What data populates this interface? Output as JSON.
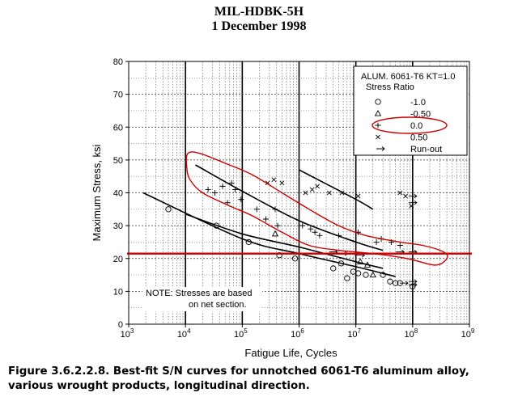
{
  "header": {
    "line1": "MIL-HDBK-5H",
    "line2": "1 December 1998"
  },
  "caption": {
    "line1": "Figure 3.6.2.2.8.  Best-fit S/N curves for unnotched 6061-T6 aluminum alloy,",
    "line2": "various wrought products, longitudinal direction."
  },
  "chart_data": {
    "type": "scatter",
    "xlabel": "Fatigue Life, Cycles",
    "ylabel": "Maximum Stress, ksi",
    "xscale": "log",
    "xlim": [
      1000,
      1000000000
    ],
    "ylim": [
      0,
      80
    ],
    "x_ticks": [
      {
        "base": "10",
        "exp": "3"
      },
      {
        "base": "10",
        "exp": "4"
      },
      {
        "base": "10",
        "exp": "5"
      },
      {
        "base": "10",
        "exp": "6"
      },
      {
        "base": "10",
        "exp": "7"
      },
      {
        "base": "10",
        "exp": "8"
      },
      {
        "base": "10",
        "exp": "9"
      }
    ],
    "y_ticks": [
      "0",
      "10",
      "20",
      "30",
      "40",
      "50",
      "60",
      "70",
      "80"
    ],
    "grid": true,
    "legend": {
      "title": "ALUM. 6061-T6 KT=1.0",
      "subtitle": "Stress Ratio",
      "placement": "top-right",
      "entries": [
        {
          "marker": "circle",
          "label": "-1.0"
        },
        {
          "marker": "triangle",
          "label": "-0.50"
        },
        {
          "marker": "plus",
          "label": "0.0"
        },
        {
          "marker": "x",
          "label": "0.50"
        },
        {
          "marker": "arrow",
          "label": "Run-out"
        }
      ]
    },
    "note": {
      "line1": "NOTE: Stresses are based",
      "line2": "on net section."
    },
    "series": [
      {
        "marker": "circle",
        "points": [
          [
            5000,
            35
          ],
          [
            35000,
            30
          ],
          [
            130000,
            25
          ],
          [
            450000,
            21
          ],
          [
            850000,
            20
          ],
          [
            4000000,
            17
          ],
          [
            5500000,
            18.5
          ],
          [
            7000000,
            14
          ],
          [
            9000000,
            16
          ],
          [
            11000000,
            15.5
          ],
          [
            15000000,
            15
          ],
          [
            30000000,
            15
          ],
          [
            40000000,
            13
          ],
          [
            50000000,
            12.5
          ],
          [
            60000000,
            12.5
          ],
          [
            100000000,
            11.5
          ]
        ]
      },
      {
        "marker": "triangle",
        "points": [
          [
            380000,
            27.5
          ],
          [
            12000000,
            19
          ],
          [
            16000000,
            18
          ],
          [
            20000000,
            15
          ]
        ]
      },
      {
        "marker": "plus",
        "points": [
          [
            25000,
            41
          ],
          [
            33000,
            40
          ],
          [
            45000,
            42
          ],
          [
            55000,
            37
          ],
          [
            65000,
            43
          ],
          [
            75000,
            41
          ],
          [
            95000,
            38
          ],
          [
            180000,
            35
          ],
          [
            260000,
            32
          ],
          [
            380000,
            35
          ],
          [
            420000,
            30
          ],
          [
            1150000,
            30
          ],
          [
            1600000,
            29
          ],
          [
            1900000,
            28
          ],
          [
            2300000,
            27
          ],
          [
            5000000,
            27
          ],
          [
            11000000,
            28
          ],
          [
            23000000,
            25
          ],
          [
            28000000,
            26
          ],
          [
            42000000,
            25
          ],
          [
            60000000,
            24
          ]
        ]
      },
      {
        "marker": "x",
        "points": [
          [
            280000,
            43
          ],
          [
            360000,
            44
          ],
          [
            500000,
            43
          ],
          [
            1300000,
            40
          ],
          [
            1700000,
            41
          ],
          [
            2100000,
            42
          ],
          [
            3400000,
            40
          ],
          [
            5700000,
            40
          ],
          [
            11000000,
            39
          ],
          [
            60000000,
            40
          ],
          [
            75000000,
            39
          ],
          [
            95000000,
            36
          ]
        ]
      },
      {
        "marker": "arrow",
        "points": [
          [
            4000000,
            22
          ],
          [
            6000000,
            21.5
          ],
          [
            9000000,
            21.5
          ],
          [
            12000000,
            21
          ],
          [
            60000000,
            22
          ],
          [
            100000000,
            22
          ],
          [
            100000000,
            39
          ],
          [
            100000000,
            37
          ],
          [
            100000000,
            13
          ],
          [
            100000000,
            12
          ],
          [
            70000000,
            12.5
          ]
        ]
      }
    ],
    "fit_curves": [
      {
        "name": "-1.0",
        "points": [
          [
            1800,
            40
          ],
          [
            100000,
            26
          ],
          [
            1000000,
            21.5
          ],
          [
            10000000,
            17.5
          ],
          [
            50000000,
            14.5
          ]
        ]
      },
      {
        "name": "-0.50",
        "points": [
          [
            10000,
            33.5
          ],
          [
            100000,
            27.5
          ],
          [
            1000000,
            23.5
          ],
          [
            10000000,
            19
          ],
          [
            30000000,
            17
          ]
        ]
      },
      {
        "name": "0.0",
        "points": [
          [
            15000,
            48.5
          ],
          [
            100000,
            40.5
          ],
          [
            1000000,
            31.5
          ],
          [
            10000000,
            25
          ],
          [
            30000000,
            22.5
          ]
        ]
      },
      {
        "name": "0.50",
        "points": [
          [
            1000000,
            47
          ],
          [
            10000000,
            38
          ],
          [
            20000000,
            35
          ]
        ]
      }
    ],
    "highlight_color": "#cc0000",
    "highlight_line_y": 21.5,
    "highlight_region": [
      [
        11000,
        52
      ],
      [
        18000,
        52
      ],
      [
        50000,
        49
      ],
      [
        150000,
        45.5
      ],
      [
        500000,
        40
      ],
      [
        1500000,
        35
      ],
      [
        5000000,
        30
      ],
      [
        15000000,
        27
      ],
      [
        60000000,
        25
      ],
      [
        150000000,
        24
      ],
      [
        350000000,
        22
      ],
      [
        400000000,
        20
      ],
      [
        250000000,
        18
      ],
      [
        80000000,
        20
      ],
      [
        20000000,
        21.5
      ],
      [
        5000000,
        22.5
      ],
      [
        1500000,
        24
      ],
      [
        500000,
        28
      ],
      [
        150000,
        33
      ],
      [
        60000,
        36
      ],
      [
        20000,
        40
      ],
      [
        12000,
        44
      ],
      [
        10500,
        48
      ]
    ],
    "legend_highlight": "0.0"
  }
}
